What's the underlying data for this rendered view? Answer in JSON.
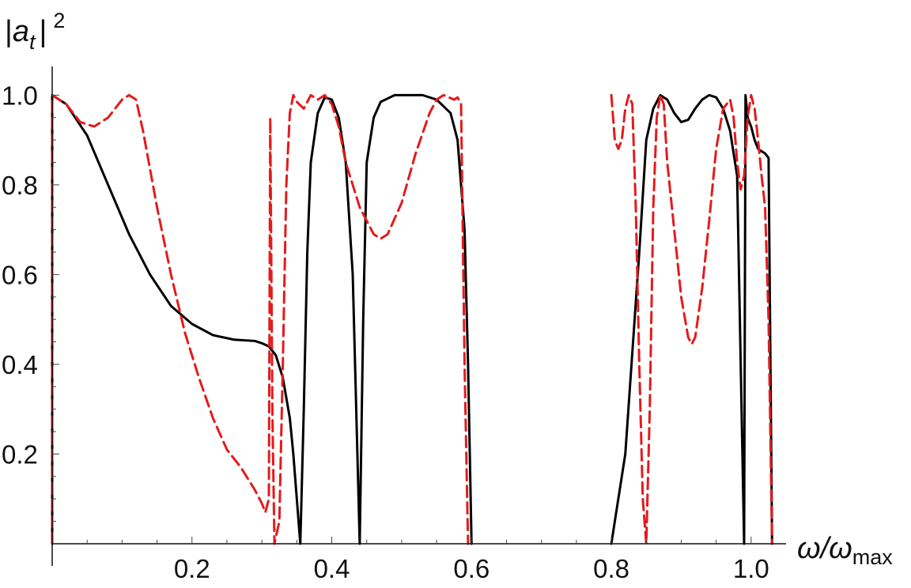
{
  "chart_data": {
    "type": "line",
    "title": "",
    "xlabel": {
      "main": "ω/ω",
      "sub": "max"
    },
    "ylabel": {
      "left": "|",
      "var": "a",
      "sub": "t",
      "right": "|",
      "sup": "2"
    },
    "xlim": [
      0.0,
      1.05
    ],
    "ylim": [
      0.0,
      1.05
    ],
    "x_ticks": [
      {
        "v": 0.2,
        "label": "0.2"
      },
      {
        "v": 0.4,
        "label": "0.4"
      },
      {
        "v": 0.6,
        "label": "0.6"
      },
      {
        "v": 0.8,
        "label": "0.8"
      },
      {
        "v": 1.0,
        "label": "1.0"
      }
    ],
    "y_ticks": [
      {
        "v": 0.2,
        "label": "0.2"
      },
      {
        "v": 0.4,
        "label": "0.4"
      },
      {
        "v": 0.6,
        "label": "0.6"
      },
      {
        "v": 0.8,
        "label": "0.8"
      },
      {
        "v": 1.0,
        "label": "1.0"
      }
    ],
    "grid": false,
    "series": [
      {
        "color": "#000000",
        "style": "solid",
        "segments": [
          [
            [
              0.0,
              0.0
            ],
            [
              0.0,
              1.0
            ],
            [
              0.02,
              0.98
            ],
            [
              0.05,
              0.91
            ],
            [
              0.08,
              0.8
            ],
            [
              0.11,
              0.69
            ],
            [
              0.14,
              0.6
            ],
            [
              0.17,
              0.53
            ],
            [
              0.2,
              0.49
            ],
            [
              0.23,
              0.465
            ],
            [
              0.26,
              0.455
            ],
            [
              0.29,
              0.452
            ],
            [
              0.3,
              0.447
            ],
            [
              0.31,
              0.44
            ],
            [
              0.32,
              0.42
            ],
            [
              0.33,
              0.37
            ],
            [
              0.34,
              0.28
            ],
            [
              0.345,
              0.2
            ],
            [
              0.35,
              0.1
            ],
            [
              0.355,
              0.0
            ],
            [
              0.36,
              0.3
            ],
            [
              0.365,
              0.65
            ],
            [
              0.37,
              0.85
            ],
            [
              0.38,
              0.96
            ],
            [
              0.39,
              0.995
            ],
            [
              0.4,
              0.99
            ],
            [
              0.41,
              0.95
            ],
            [
              0.42,
              0.85
            ],
            [
              0.43,
              0.6
            ],
            [
              0.435,
              0.3
            ],
            [
              0.44,
              0.0
            ],
            [
              0.445,
              0.5
            ],
            [
              0.45,
              0.85
            ],
            [
              0.46,
              0.95
            ],
            [
              0.47,
              0.985
            ],
            [
              0.49,
              1.0
            ],
            [
              0.51,
              1.0
            ],
            [
              0.53,
              1.0
            ],
            [
              0.55,
              0.99
            ],
            [
              0.57,
              0.96
            ],
            [
              0.58,
              0.9
            ],
            [
              0.59,
              0.7
            ],
            [
              0.595,
              0.4
            ],
            [
              0.6,
              0.0
            ]
          ],
          [
            [
              0.8,
              0.0
            ],
            [
              0.82,
              0.2
            ],
            [
              0.84,
              0.65
            ],
            [
              0.85,
              0.9
            ],
            [
              0.86,
              0.97
            ],
            [
              0.87,
              1.0
            ],
            [
              0.88,
              0.99
            ],
            [
              0.89,
              0.96
            ],
            [
              0.9,
              0.94
            ],
            [
              0.91,
              0.945
            ],
            [
              0.92,
              0.97
            ],
            [
              0.93,
              0.99
            ],
            [
              0.94,
              1.0
            ],
            [
              0.95,
              0.995
            ],
            [
              0.96,
              0.97
            ],
            [
              0.97,
              0.92
            ],
            [
              0.975,
              0.87
            ],
            [
              0.98,
              0.82
            ],
            [
              0.99,
              0.0
            ],
            [
              0.992,
              1.0
            ],
            [
              0.995,
              0.95
            ],
            [
              1.0,
              0.93
            ],
            [
              1.005,
              0.9
            ],
            [
              1.01,
              0.88
            ],
            [
              1.015,
              0.875
            ],
            [
              1.02,
              0.87
            ],
            [
              1.025,
              0.86
            ],
            [
              1.03,
              0.0
            ]
          ]
        ]
      },
      {
        "color": "#e41a1c",
        "style": "dashed",
        "segments": [
          [
            [
              0.0,
              0.0
            ],
            [
              0.0,
              1.0
            ],
            [
              0.02,
              0.98
            ],
            [
              0.04,
              0.94
            ],
            [
              0.06,
              0.93
            ],
            [
              0.08,
              0.95
            ],
            [
              0.1,
              0.99
            ],
            [
              0.11,
              1.0
            ],
            [
              0.12,
              0.99
            ],
            [
              0.13,
              0.92
            ],
            [
              0.15,
              0.75
            ],
            [
              0.17,
              0.6
            ],
            [
              0.19,
              0.47
            ],
            [
              0.21,
              0.37
            ],
            [
              0.23,
              0.28
            ],
            [
              0.25,
              0.21
            ],
            [
              0.27,
              0.17
            ],
            [
              0.29,
              0.12
            ],
            [
              0.3,
              0.09
            ],
            [
              0.305,
              0.07
            ],
            [
              0.31,
              0.1
            ],
            [
              0.312,
              0.95
            ],
            [
              0.315,
              0.3
            ],
            [
              0.318,
              0.0
            ],
            [
              0.325,
              0.05
            ],
            [
              0.33,
              0.4
            ],
            [
              0.335,
              0.8
            ],
            [
              0.34,
              0.96
            ],
            [
              0.345,
              1.0
            ],
            [
              0.35,
              0.985
            ],
            [
              0.36,
              0.97
            ],
            [
              0.37,
              1.0
            ],
            [
              0.38,
              0.99
            ],
            [
              0.39,
              1.0
            ],
            [
              0.4,
              0.98
            ],
            [
              0.41,
              0.93
            ],
            [
              0.42,
              0.85
            ],
            [
              0.44,
              0.75
            ],
            [
              0.46,
              0.69
            ],
            [
              0.47,
              0.68
            ],
            [
              0.48,
              0.69
            ],
            [
              0.5,
              0.76
            ],
            [
              0.52,
              0.87
            ],
            [
              0.54,
              0.96
            ],
            [
              0.55,
              0.99
            ],
            [
              0.56,
              1.0
            ],
            [
              0.575,
              0.99
            ],
            [
              0.58,
              0.995
            ],
            [
              0.585,
              0.98
            ],
            [
              0.59,
              0.4
            ],
            [
              0.595,
              0.0
            ]
          ],
          [
            [
              0.8,
              1.0
            ],
            [
              0.805,
              0.9
            ],
            [
              0.81,
              0.88
            ],
            [
              0.815,
              0.9
            ],
            [
              0.82,
              0.97
            ],
            [
              0.825,
              1.0
            ],
            [
              0.83,
              0.98
            ],
            [
              0.835,
              0.75
            ],
            [
              0.84,
              0.4
            ],
            [
              0.845,
              0.1
            ],
            [
              0.85,
              0.0
            ],
            [
              0.855,
              0.3
            ],
            [
              0.86,
              0.75
            ],
            [
              0.865,
              0.95
            ],
            [
              0.87,
              1.0
            ],
            [
              0.875,
              0.98
            ],
            [
              0.88,
              0.85
            ],
            [
              0.89,
              0.7
            ],
            [
              0.9,
              0.55
            ],
            [
              0.91,
              0.46
            ],
            [
              0.915,
              0.445
            ],
            [
              0.92,
              0.46
            ],
            [
              0.93,
              0.57
            ],
            [
              0.94,
              0.72
            ],
            [
              0.95,
              0.88
            ],
            [
              0.96,
              0.97
            ],
            [
              0.97,
              0.99
            ],
            [
              0.975,
              0.95
            ],
            [
              0.98,
              0.85
            ],
            [
              0.985,
              0.79
            ],
            [
              0.99,
              0.82
            ],
            [
              0.995,
              0.95
            ],
            [
              1.0,
              1.0
            ],
            [
              1.005,
              0.97
            ],
            [
              1.01,
              0.9
            ],
            [
              1.015,
              0.82
            ],
            [
              1.02,
              0.75
            ],
            [
              1.025,
              0.5
            ],
            [
              1.03,
              0.0
            ]
          ]
        ]
      }
    ]
  }
}
